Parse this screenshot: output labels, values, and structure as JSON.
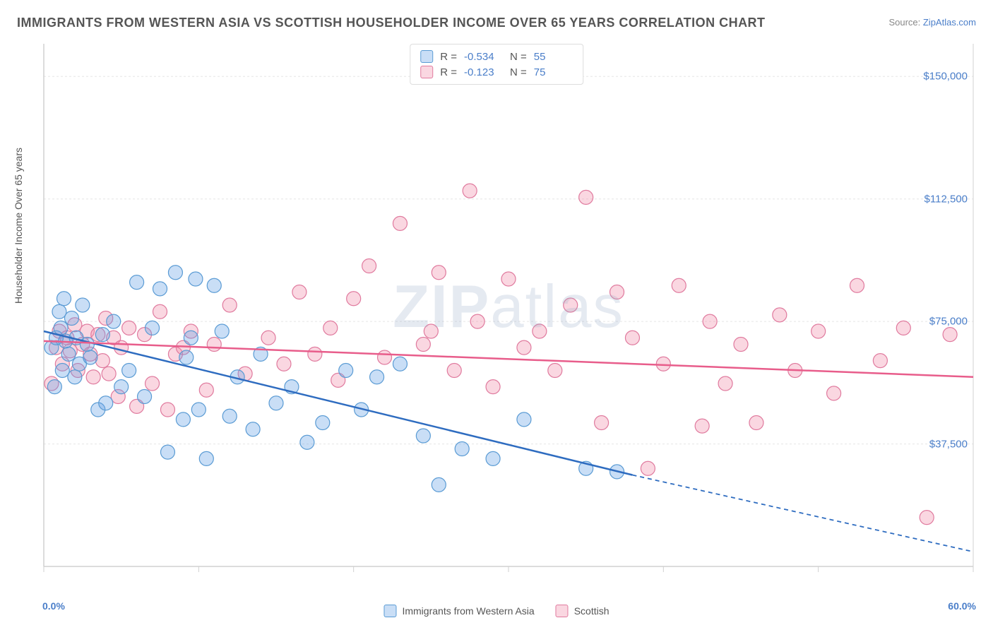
{
  "title": "IMMIGRANTS FROM WESTERN ASIA VS SCOTTISH HOUSEHOLDER INCOME OVER 65 YEARS CORRELATION CHART",
  "source_prefix": "Source: ",
  "source_name": "ZipAtlas.com",
  "y_label": "Householder Income Over 65 years",
  "watermark_a": "ZIP",
  "watermark_b": "atlas",
  "chart": {
    "type": "scatter",
    "x_min_label": "0.0%",
    "x_max_label": "60.0%",
    "xlim": [
      0,
      60
    ],
    "ylim": [
      0,
      160000
    ],
    "yticks": [
      37500,
      75000,
      112500,
      150000
    ],
    "ytick_labels": [
      "$37,500",
      "$75,000",
      "$112,500",
      "$150,000"
    ],
    "x_grid_ticks": [
      0,
      10,
      20,
      30,
      40,
      50,
      60
    ],
    "plot_bg": "#ffffff",
    "grid_color": "#e5e5e5",
    "axis_color": "#d0d0d0",
    "series": [
      {
        "id": "western_asia",
        "label": "Immigrants from Western Asia",
        "fill": "rgba(100,160,230,0.35)",
        "stroke": "#5a9bd4",
        "line_stroke": "#2e6cc0",
        "marker_r": 10,
        "R": "-0.534",
        "N": "55",
        "trend": {
          "x1": 0,
          "y1": 72000,
          "x2": 38,
          "y2": 28000,
          "dash_to_x": 60,
          "dash_to_y": 4500
        },
        "points": [
          [
            0.5,
            67000
          ],
          [
            0.7,
            55000
          ],
          [
            0.8,
            70000
          ],
          [
            1.0,
            78000
          ],
          [
            1.1,
            73000
          ],
          [
            1.2,
            60000
          ],
          [
            1.3,
            82000
          ],
          [
            1.4,
            69000
          ],
          [
            1.6,
            65000
          ],
          [
            1.8,
            76000
          ],
          [
            2.0,
            58000
          ],
          [
            2.1,
            70000
          ],
          [
            2.3,
            62000
          ],
          [
            2.5,
            80000
          ],
          [
            2.8,
            68000
          ],
          [
            3.0,
            64000
          ],
          [
            3.5,
            48000
          ],
          [
            3.8,
            71000
          ],
          [
            4.0,
            50000
          ],
          [
            4.5,
            75000
          ],
          [
            5.0,
            55000
          ],
          [
            5.5,
            60000
          ],
          [
            6.0,
            87000
          ],
          [
            6.5,
            52000
          ],
          [
            7.0,
            73000
          ],
          [
            7.5,
            85000
          ],
          [
            8.0,
            35000
          ],
          [
            8.5,
            90000
          ],
          [
            9.0,
            45000
          ],
          [
            9.2,
            64000
          ],
          [
            9.5,
            70000
          ],
          [
            9.8,
            88000
          ],
          [
            10.0,
            48000
          ],
          [
            10.5,
            33000
          ],
          [
            11.0,
            86000
          ],
          [
            11.5,
            72000
          ],
          [
            12.0,
            46000
          ],
          [
            12.5,
            58000
          ],
          [
            13.5,
            42000
          ],
          [
            14.0,
            65000
          ],
          [
            15.0,
            50000
          ],
          [
            16.0,
            55000
          ],
          [
            17.0,
            38000
          ],
          [
            18.0,
            44000
          ],
          [
            19.5,
            60000
          ],
          [
            20.5,
            48000
          ],
          [
            21.5,
            58000
          ],
          [
            23.0,
            62000
          ],
          [
            24.5,
            40000
          ],
          [
            25.5,
            25000
          ],
          [
            27.0,
            36000
          ],
          [
            29.0,
            33000
          ],
          [
            31.0,
            45000
          ],
          [
            35.0,
            30000
          ],
          [
            37.0,
            29000
          ]
        ]
      },
      {
        "id": "scottish",
        "label": "Scottish",
        "fill": "rgba(240,140,170,0.35)",
        "stroke": "#e07a9e",
        "line_stroke": "#e85d8b",
        "marker_r": 10,
        "R": "-0.123",
        "N": "75",
        "trend": {
          "x1": 0,
          "y1": 69000,
          "x2": 60,
          "y2": 58000
        },
        "points": [
          [
            0.5,
            56000
          ],
          [
            0.8,
            67000
          ],
          [
            1.0,
            72000
          ],
          [
            1.2,
            62000
          ],
          [
            1.5,
            70000
          ],
          [
            1.7,
            66000
          ],
          [
            2.0,
            74000
          ],
          [
            2.2,
            60000
          ],
          [
            2.5,
            68000
          ],
          [
            2.8,
            72000
          ],
          [
            3.0,
            65000
          ],
          [
            3.2,
            58000
          ],
          [
            3.5,
            71000
          ],
          [
            3.8,
            63000
          ],
          [
            4.0,
            76000
          ],
          [
            4.2,
            59000
          ],
          [
            4.5,
            70000
          ],
          [
            4.8,
            52000
          ],
          [
            5.0,
            67000
          ],
          [
            5.5,
            73000
          ],
          [
            6.0,
            49000
          ],
          [
            6.5,
            71000
          ],
          [
            7.0,
            56000
          ],
          [
            7.5,
            78000
          ],
          [
            8.0,
            48000
          ],
          [
            8.5,
            65000
          ],
          [
            9.0,
            67000
          ],
          [
            9.5,
            72000
          ],
          [
            10.5,
            54000
          ],
          [
            11.0,
            68000
          ],
          [
            12.0,
            80000
          ],
          [
            13.0,
            59000
          ],
          [
            14.5,
            70000
          ],
          [
            15.5,
            62000
          ],
          [
            16.5,
            84000
          ],
          [
            17.5,
            65000
          ],
          [
            18.5,
            73000
          ],
          [
            19.0,
            57000
          ],
          [
            20.0,
            82000
          ],
          [
            21.0,
            92000
          ],
          [
            22.0,
            64000
          ],
          [
            23.0,
            105000
          ],
          [
            24.5,
            68000
          ],
          [
            25.0,
            72000
          ],
          [
            25.5,
            90000
          ],
          [
            26.5,
            60000
          ],
          [
            27.5,
            115000
          ],
          [
            28.0,
            75000
          ],
          [
            29.0,
            55000
          ],
          [
            30.0,
            88000
          ],
          [
            31.0,
            67000
          ],
          [
            32.0,
            72000
          ],
          [
            33.0,
            60000
          ],
          [
            34.0,
            80000
          ],
          [
            35.0,
            113000
          ],
          [
            36.0,
            44000
          ],
          [
            37.0,
            84000
          ],
          [
            38.0,
            70000
          ],
          [
            39.0,
            30000
          ],
          [
            40.0,
            62000
          ],
          [
            41.0,
            86000
          ],
          [
            42.5,
            43000
          ],
          [
            43.0,
            75000
          ],
          [
            44.0,
            56000
          ],
          [
            45.0,
            68000
          ],
          [
            46.0,
            44000
          ],
          [
            47.5,
            77000
          ],
          [
            48.5,
            60000
          ],
          [
            50.0,
            72000
          ],
          [
            51.0,
            53000
          ],
          [
            52.5,
            86000
          ],
          [
            54.0,
            63000
          ],
          [
            55.5,
            73000
          ],
          [
            57.0,
            15000
          ],
          [
            58.5,
            71000
          ]
        ]
      }
    ]
  }
}
